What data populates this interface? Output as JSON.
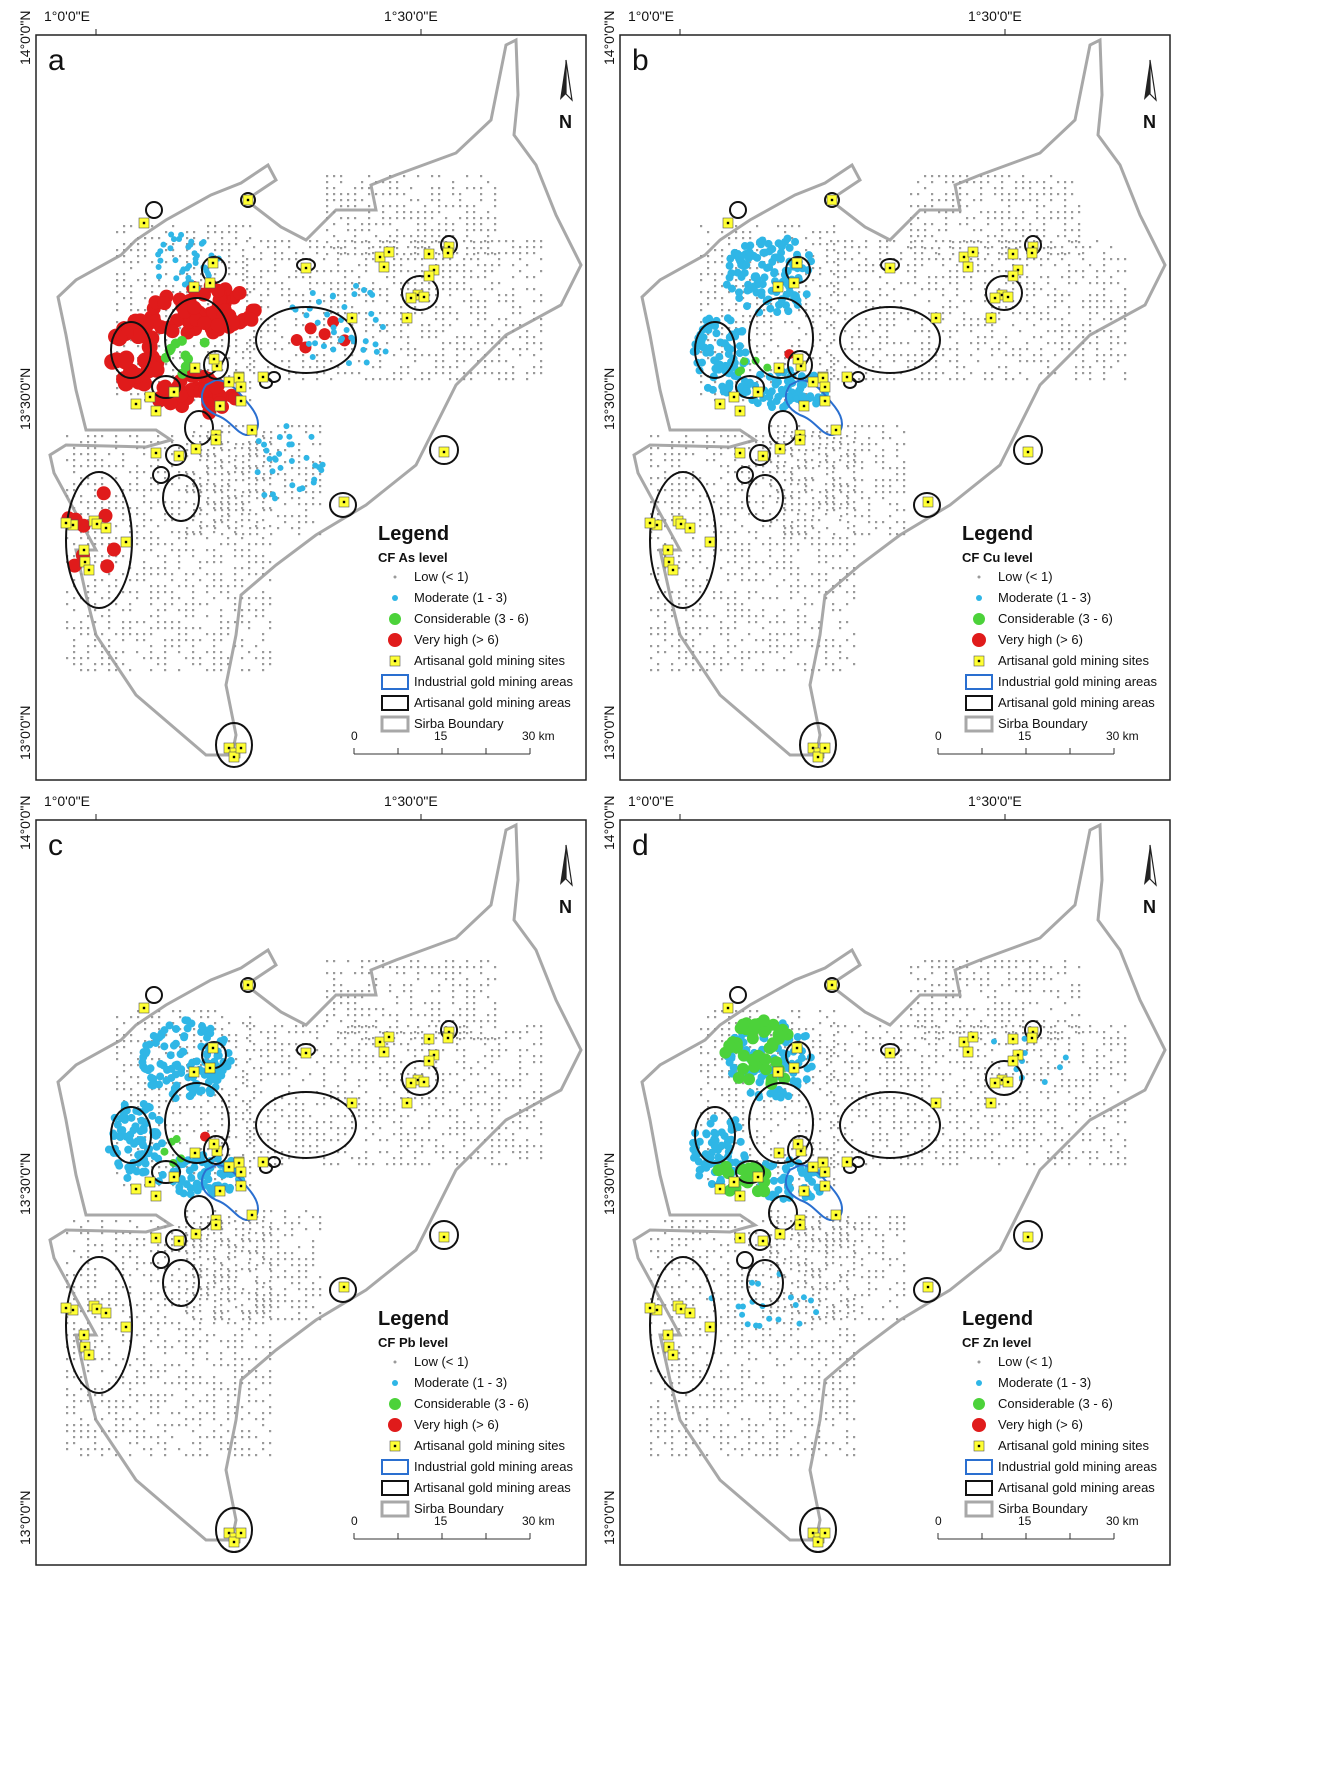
{
  "grid_labels": {
    "lon_left": "1°0'0\"E",
    "lon_right": "1°30'0\"E",
    "lat_top": "14°0'0\"N",
    "lat_mid": "13°30'0\"N",
    "lat_bottom": "13°0'0\"N"
  },
  "north_arrow_label": "N",
  "scale_bar": {
    "zero": "0",
    "mid": "15",
    "end": "30 km"
  },
  "legend_common": {
    "title": "Legend",
    "low": "Low (< 1)",
    "moderate": "Moderate (1 - 3)",
    "considerable": "Considerable (3 - 6)",
    "very_high": "Very high (> 6)",
    "artisanal_sites": "Artisanal gold mining sites",
    "industrial_areas": "Industrial gold mining areas",
    "artisanal_areas": "Artisanal gold mining areas",
    "boundary": "Sirba Boundary"
  },
  "colors": {
    "low": "#9a9a9a",
    "moderate": "#2fb6e6",
    "considerable": "#4cd23a",
    "very_high": "#e01b1b",
    "site_fill": "#ffff33",
    "industrial": "#2a6fd0",
    "artisanal": "#111111",
    "boundary": "#a8a8a8"
  },
  "panels": [
    {
      "letter": "a",
      "legend_subtitle": "CF As level",
      "dominant": "very_high"
    },
    {
      "letter": "b",
      "legend_subtitle": "CF Cu level",
      "dominant": "moderate"
    },
    {
      "letter": "c",
      "legend_subtitle": "CF Pb level",
      "dominant": "moderate"
    },
    {
      "letter": "d",
      "legend_subtitle": "CF Zn level",
      "dominant": "mixed"
    }
  ]
}
